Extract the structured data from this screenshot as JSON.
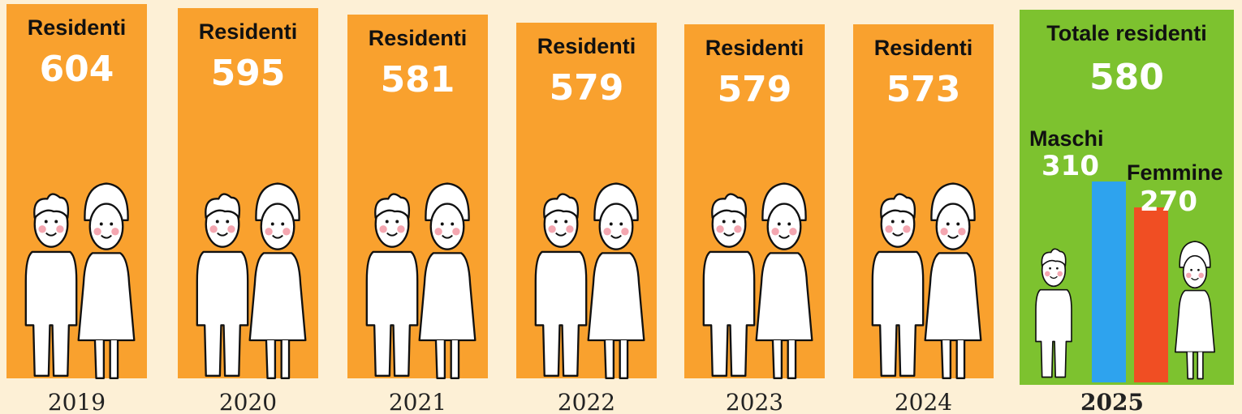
{
  "panels": [
    {
      "label": "Residenti",
      "value": 604,
      "year": "2019"
    },
    {
      "label": "Residenti",
      "value": 595,
      "year": "2020"
    },
    {
      "label": "Residenti",
      "value": 581,
      "year": "2021"
    },
    {
      "label": "Residenti",
      "value": 579,
      "year": "2022"
    },
    {
      "label": "Residenti",
      "value": 579,
      "year": "2023"
    },
    {
      "label": "Residenti",
      "value": 573,
      "year": "2024"
    }
  ],
  "current": {
    "label": "Totale residenti",
    "value": 580,
    "year": "2025",
    "males": {
      "label": "Maschi",
      "value": 310,
      "color": "#2ea3ee"
    },
    "females": {
      "label": "Femmine",
      "value": 270,
      "color": "#f04e23"
    }
  }
}
